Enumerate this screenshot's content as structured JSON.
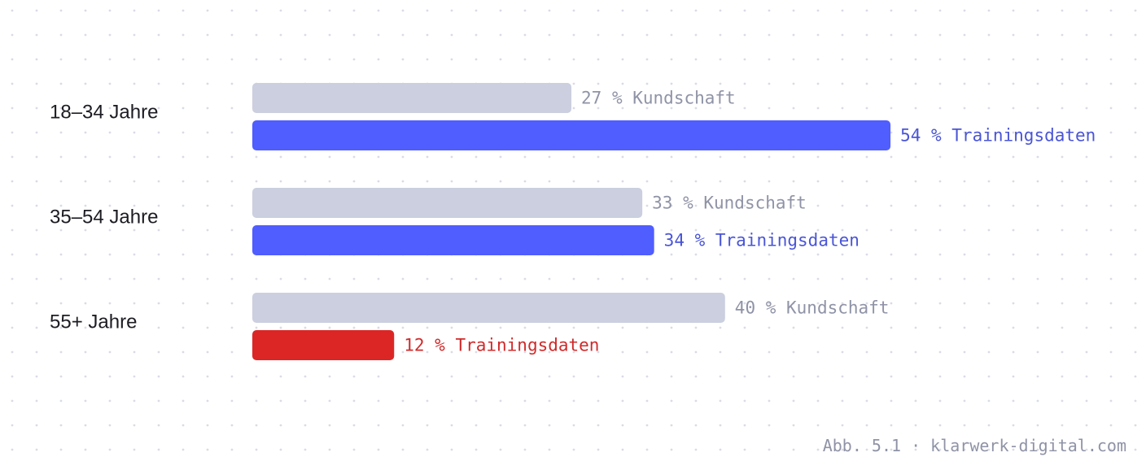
{
  "chart_data": {
    "type": "bar",
    "orientation": "horizontal",
    "categories": [
      "18–34 Jahre",
      "35–54 Jahre",
      "55+ Jahre"
    ],
    "series": [
      {
        "key": "kundschaft",
        "values": [
          27,
          33,
          40
        ],
        "labels": [
          "27 % Kundschaft",
          "33 % Kundschaft",
          "40 % Kundschaft"
        ],
        "color": "#cbcfdf",
        "label_color": "#8f93a6"
      },
      {
        "key": "trainingsdaten",
        "values": [
          54,
          34,
          12
        ],
        "labels": [
          "54 % Trainingsdaten",
          "34 % Trainingsdaten",
          "12 % Trainingsdaten"
        ],
        "color": "#505dff",
        "label_color": "#4a55d6",
        "highlight": {
          "index": 2,
          "color": "#dc2626",
          "label_color": "#d12a2a"
        }
      }
    ],
    "xlim": [
      0,
      100
    ],
    "grid": "dotted-background",
    "legend": "none"
  },
  "caption": "Abb. 5.1 · klarwerk-digital.com"
}
